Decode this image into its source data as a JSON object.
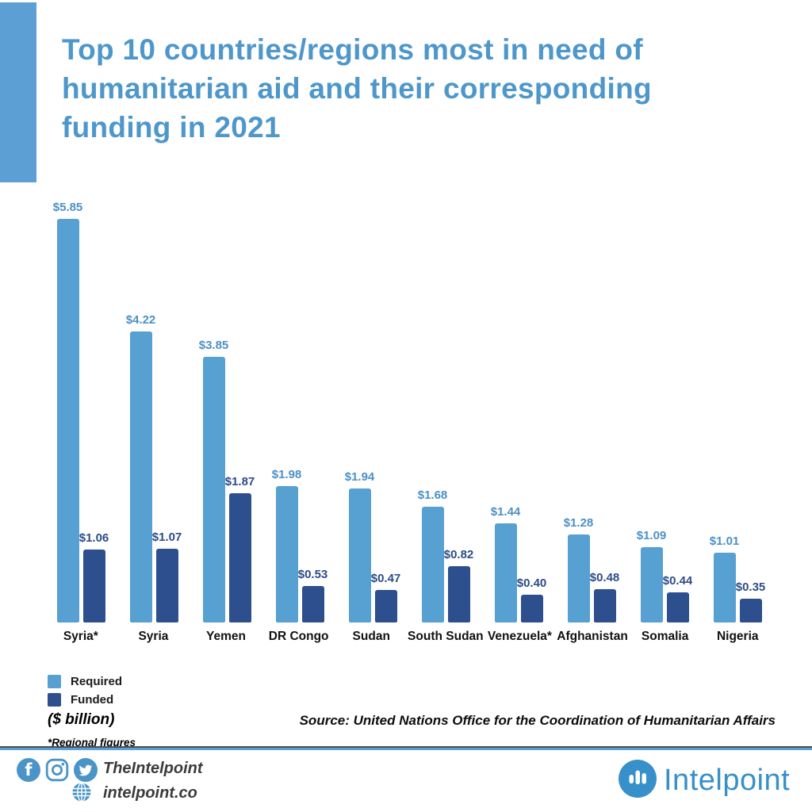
{
  "title": "Top 10 countries/regions most in need of humanitarian aid and their corresponding funding in 2021",
  "chart_data": {
    "type": "bar",
    "title": "Top 10 countries/regions most in need of humanitarian aid and their corresponding funding in 2021",
    "categories": [
      "Syria*",
      "Syria",
      "Yemen",
      "DR Congo",
      "Sudan",
      "South Sudan",
      "Venezuela*",
      "Afghanistan",
      "Somalia",
      "Nigeria"
    ],
    "series": [
      {
        "name": "Required",
        "color": "#57a0d2",
        "label_color": "#4b90c6",
        "values": [
          5.85,
          4.22,
          3.85,
          1.98,
          1.94,
          1.68,
          1.44,
          1.28,
          1.09,
          1.01
        ]
      },
      {
        "name": "Funded",
        "color": "#2e4f8d",
        "label_color": "#2c4c88",
        "values": [
          1.06,
          1.07,
          1.87,
          0.53,
          0.47,
          0.82,
          0.4,
          0.48,
          0.44,
          0.35
        ]
      }
    ],
    "value_prefix": "$",
    "value_decimals": 2,
    "unit_label": "($ billion)",
    "footnote": "*Regional figures",
    "xlabel": "",
    "ylabel": "",
    "ylim": [
      0,
      6.26
    ],
    "grid": false,
    "legend_position": "bottom-left"
  },
  "source": "Source: United Nations Office for the Coordination of Humanitarian Affairs",
  "footer": {
    "handle": "TheIntelpoint",
    "website": "intelpoint.co",
    "brand": "Intelpoint"
  },
  "colors": {
    "accent": "#5b9fd4",
    "title": "#4e97cb",
    "brand": "#3790c9",
    "icon_blue": "#4a94c8"
  }
}
